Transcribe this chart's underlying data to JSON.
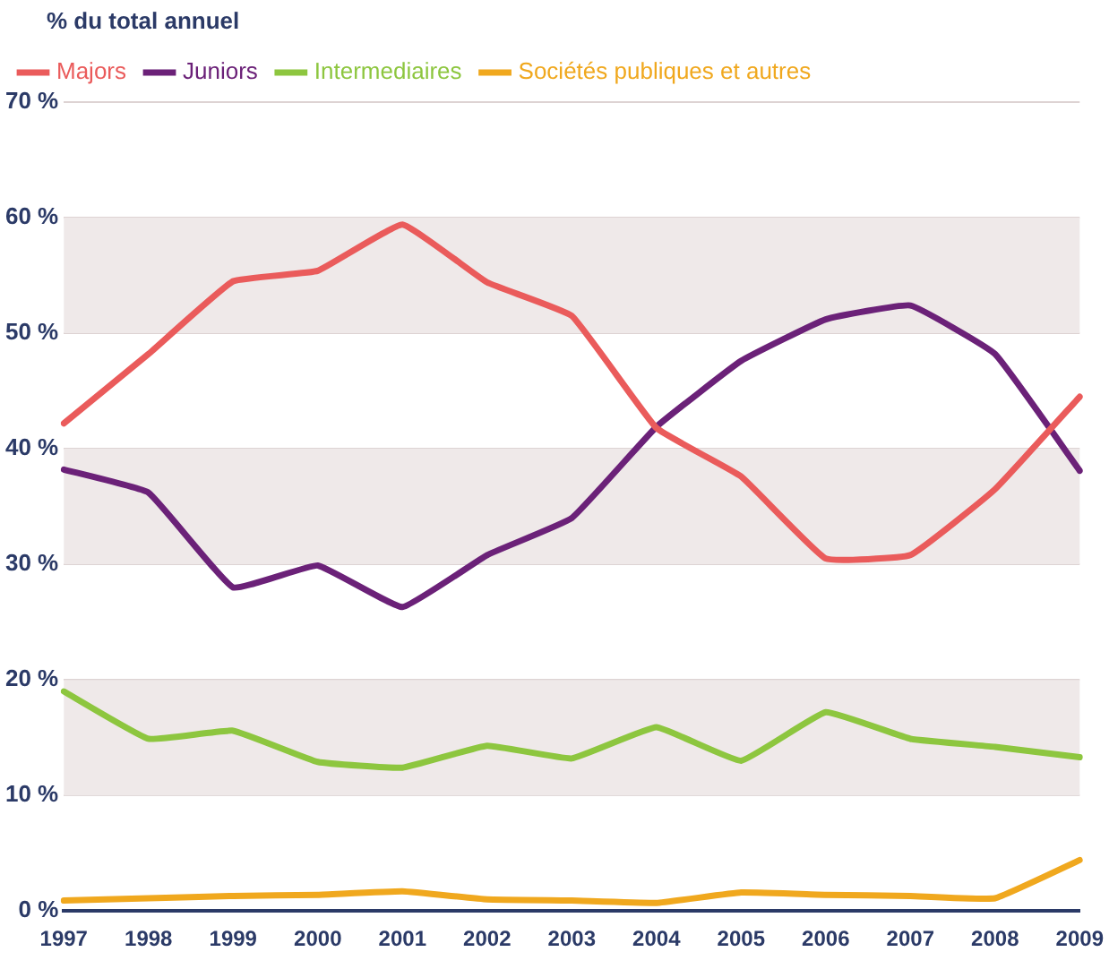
{
  "chart_data": {
    "type": "line",
    "ylabel": "% du total annuel",
    "categories": [
      "1997",
      "1998",
      "1999",
      "2000",
      "2001",
      "2002",
      "2003",
      "2004",
      "2005",
      "2006",
      "2007",
      "2008",
      "2009"
    ],
    "series": [
      {
        "name": "Majors",
        "color": "#ea5b5b",
        "values": [
          42.2,
          48.2,
          54.5,
          55.4,
          59.4,
          54.4,
          51.5,
          41.8,
          37.6,
          30.5,
          30.8,
          36.5,
          44.5
        ]
      },
      {
        "name": "Juniors",
        "color": "#6b2178",
        "values": [
          38.2,
          36.2,
          28.0,
          29.9,
          26.3,
          30.8,
          34.0,
          41.9,
          47.6,
          51.2,
          52.4,
          48.2,
          38.1
        ]
      },
      {
        "name": "Intermediaires",
        "color": "#8dc63f",
        "values": [
          19.0,
          14.9,
          15.6,
          12.9,
          12.4,
          14.3,
          13.2,
          15.9,
          13.0,
          17.2,
          14.9,
          14.2,
          13.3
        ]
      },
      {
        "name": "Sociétés publiques et autres",
        "color": "#f0a81e",
        "values": [
          0.9,
          1.1,
          1.3,
          1.4,
          1.7,
          1.0,
          0.9,
          0.7,
          1.6,
          1.4,
          1.3,
          1.1,
          4.4
        ]
      }
    ],
    "ylim": [
      0,
      70
    ],
    "yticks": [
      {
        "value": 0,
        "label": "0 %"
      },
      {
        "value": 10,
        "label": "10 %"
      },
      {
        "value": 20,
        "label": "20 %"
      },
      {
        "value": 30,
        "label": "30 %"
      },
      {
        "value": 40,
        "label": "40 %"
      },
      {
        "value": 50,
        "label": "50 %"
      },
      {
        "value": 60,
        "label": "60 %"
      },
      {
        "value": 70,
        "label": "70 %"
      }
    ],
    "grid": "y",
    "legend": "top left",
    "marker": "none",
    "line_style": "solid"
  }
}
